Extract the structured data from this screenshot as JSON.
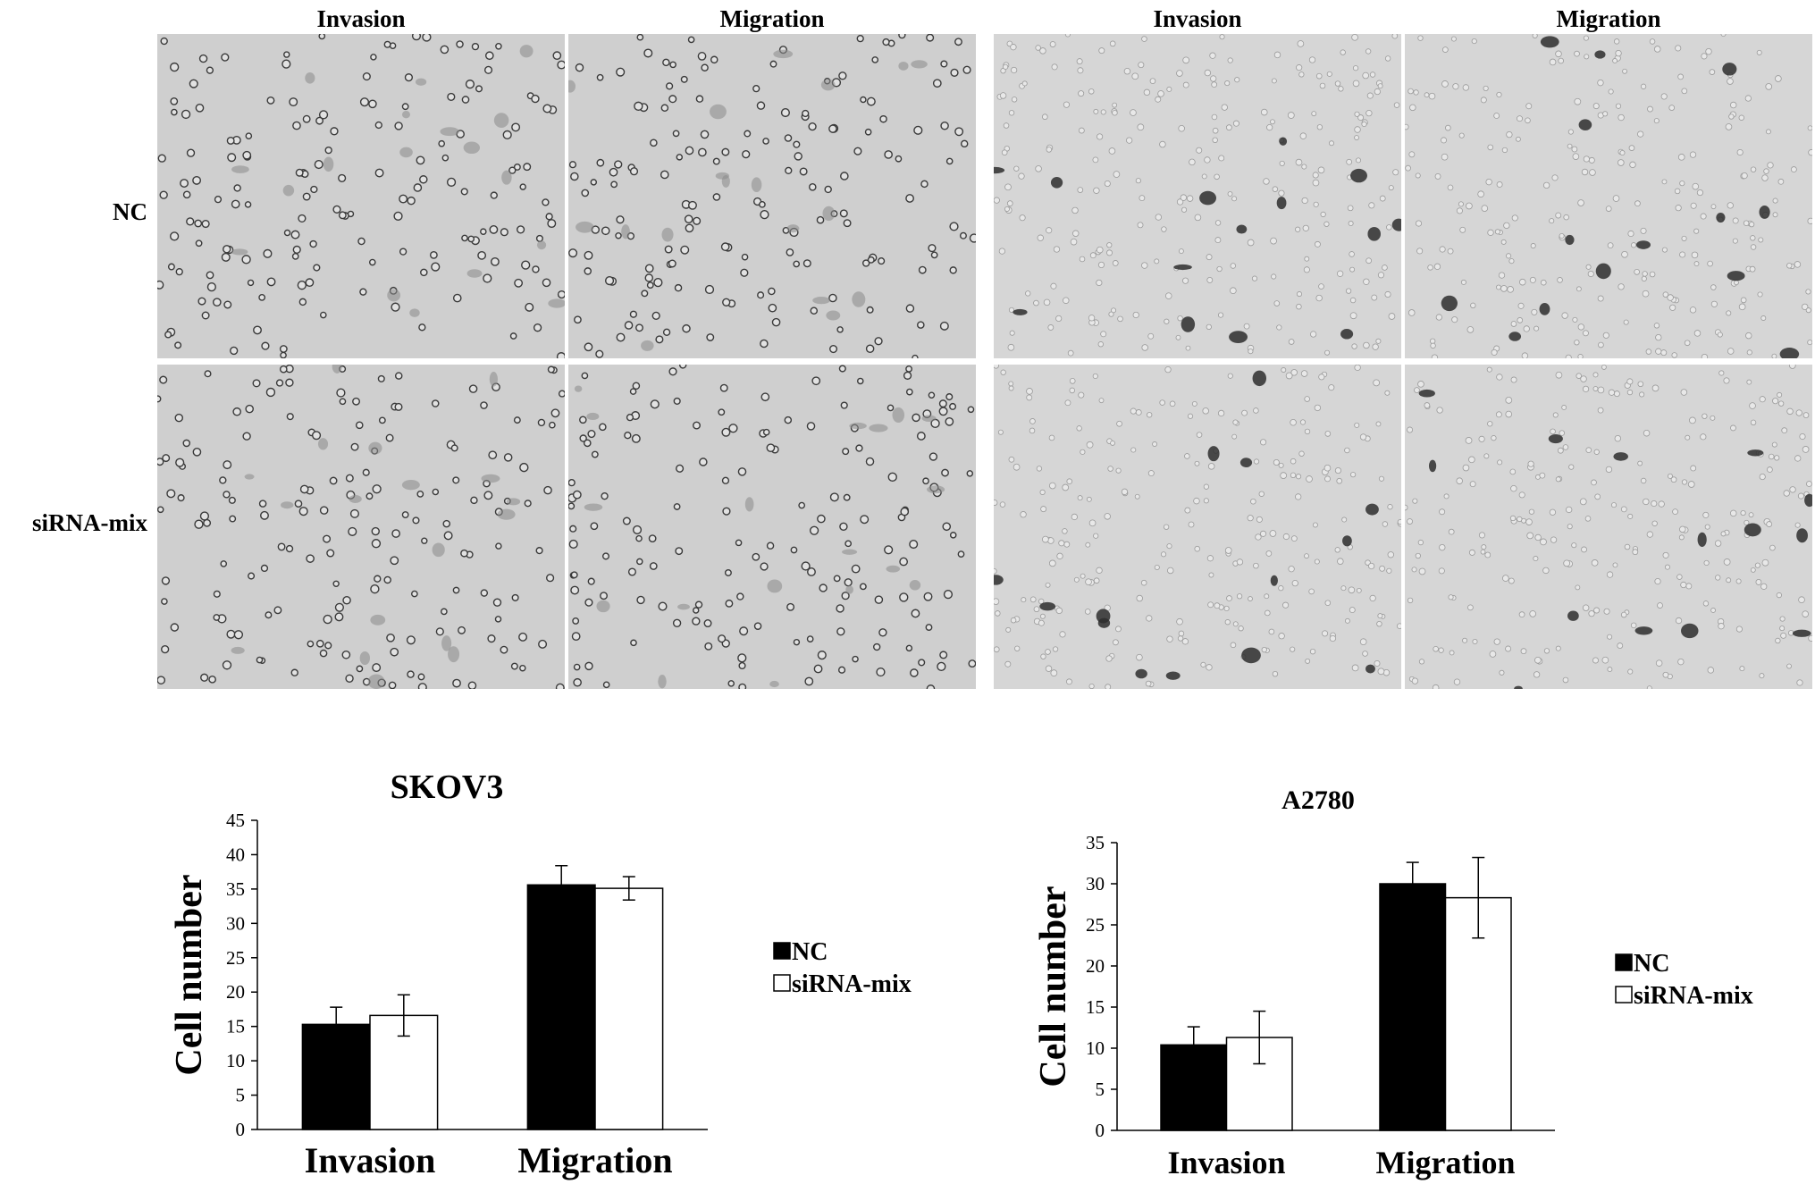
{
  "figure": {
    "column_labels": [
      "Invasion",
      "Migration",
      "Invasion",
      "Migration"
    ],
    "row_labels": [
      "NC",
      "siRNA-mix"
    ]
  },
  "chart_data": [
    {
      "type": "bar",
      "title": "SKOV3",
      "categories": [
        "Invasion",
        "Migration"
      ],
      "series": [
        {
          "name": "NC",
          "values": [
            15.3,
            35.6
          ],
          "errors": [
            2.5,
            2.8
          ],
          "color": "#000000"
        },
        {
          "name": "siRNA-mix",
          "values": [
            16.6,
            35.1
          ],
          "errors": [
            3.0,
            1.7
          ],
          "color": "#ffffff"
        }
      ],
      "ylabel": "Cell number",
      "xlabel": "",
      "ylim": [
        0,
        45
      ],
      "yticks": [
        "0",
        "5",
        "10",
        "15",
        "20",
        "25",
        "30",
        "35",
        "40",
        "45"
      ],
      "grid": false,
      "legend": "right"
    },
    {
      "type": "bar",
      "title": "A2780",
      "categories": [
        "Invasion",
        "Migration"
      ],
      "series": [
        {
          "name": "NC",
          "values": [
            10.4,
            30.0
          ],
          "errors": [
            2.2,
            2.6
          ],
          "color": "#000000"
        },
        {
          "name": "siRNA-mix",
          "values": [
            11.3,
            28.3
          ],
          "errors": [
            3.2,
            4.9
          ],
          "color": "#ffffff"
        }
      ],
      "ylabel": "Cell number",
      "xlabel": "",
      "ylim": [
        0,
        35
      ],
      "yticks": [
        "0",
        "5",
        "10",
        "15",
        "20",
        "25",
        "30",
        "35"
      ],
      "grid": false,
      "legend": "right"
    }
  ]
}
